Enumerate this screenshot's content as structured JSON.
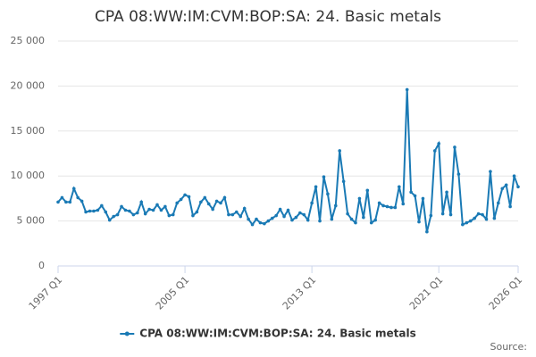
{
  "chart_data": {
    "type": "line",
    "title": "CPA 08:WW:IM:CVM:BOP:SA: 24. Basic metals",
    "source_label": "Source:",
    "categories": [
      "1997 Q1",
      null,
      null,
      null,
      null,
      null,
      null,
      null,
      null,
      null,
      null,
      null,
      null,
      null,
      null,
      null,
      null,
      null,
      null,
      null,
      null,
      null,
      null,
      null,
      null,
      null,
      null,
      null,
      null,
      null,
      null,
      null,
      "2005 Q1",
      null,
      null,
      null,
      null,
      null,
      null,
      null,
      null,
      null,
      null,
      null,
      null,
      null,
      null,
      null,
      null,
      null,
      null,
      null,
      null,
      null,
      null,
      null,
      null,
      null,
      null,
      null,
      null,
      null,
      null,
      null,
      "2013 Q1",
      null,
      null,
      null,
      null,
      null,
      null,
      null,
      null,
      null,
      null,
      null,
      null,
      null,
      null,
      null,
      null,
      null,
      null,
      null,
      null,
      null,
      null,
      null,
      null,
      null,
      null,
      null,
      null,
      null,
      null,
      null,
      "2021 Q1",
      null,
      null,
      null,
      null,
      null,
      null,
      null,
      null,
      null,
      null,
      null,
      null,
      null,
      null,
      null,
      null,
      null,
      null,
      null,
      "2026 Q1"
    ],
    "series": [
      {
        "name": "CPA 08:WW:IM:CVM:BOP:SA: 24. Basic metals",
        "color": "#1a7ab5",
        "values": [
          7100,
          7600,
          7100,
          7100,
          8600,
          7600,
          7200,
          6000,
          6100,
          6100,
          6200,
          6700,
          6000,
          5100,
          5500,
          5700,
          6600,
          6200,
          6100,
          5700,
          5900,
          7100,
          5800,
          6300,
          6200,
          6800,
          6200,
          6600,
          5600,
          5700,
          7000,
          7400,
          7900,
          7700,
          5600,
          6000,
          7100,
          7600,
          6900,
          6300,
          7200,
          7000,
          7600,
          5700,
          5700,
          6000,
          5500,
          6400,
          5200,
          4600,
          5200,
          4800,
          4700,
          5000,
          5300,
          5600,
          6300,
          5500,
          6200,
          5100,
          5400,
          5900,
          5700,
          5100,
          7000,
          8800,
          5000,
          9900,
          8000,
          5200,
          6700,
          12800,
          9400,
          5800,
          5200,
          4800,
          7500,
          5400,
          8400,
          4800,
          5100,
          7000,
          6700,
          6600,
          6500,
          6500,
          8800,
          6900,
          19600,
          8200,
          7800,
          4900,
          7500,
          3800,
          5600,
          12800,
          13600,
          5800,
          8200,
          5700,
          13200,
          10200,
          4600,
          4800,
          5000,
          5300,
          5800,
          5700,
          5200,
          10500,
          5300,
          7000,
          8600,
          9000,
          6600,
          10000,
          8800
        ]
      }
    ],
    "ylim": [
      0,
      25000
    ],
    "yticks": [
      0,
      {
        "value": 5000,
        "label": "5 000"
      },
      {
        "value": 10000,
        "label": "10 000"
      },
      {
        "value": 15000,
        "label": "15 000"
      },
      {
        "value": 20000,
        "label": "20 000"
      },
      {
        "value": 25000,
        "label": "25 000"
      }
    ],
    "grid": true
  }
}
